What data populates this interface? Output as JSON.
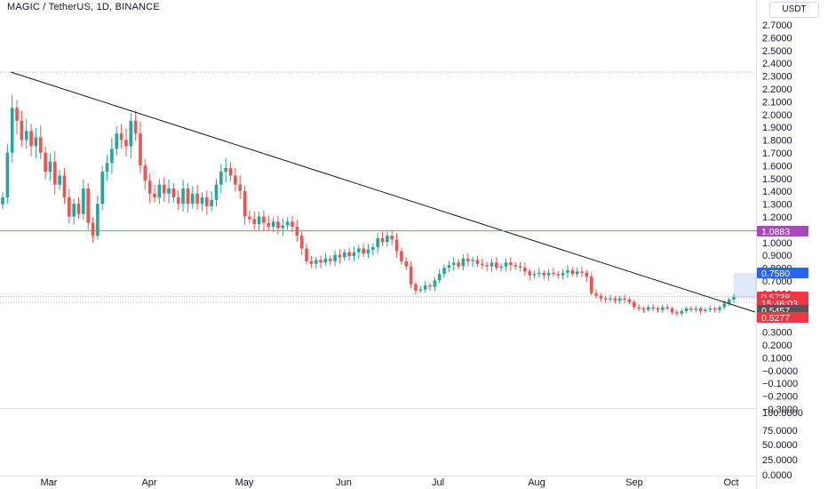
{
  "header": {
    "title": "MAGIC / TetherUS, 1D, BINANCE",
    "currency": "USDT"
  },
  "colors": {
    "up": "#26a69a",
    "down": "#ef5350",
    "trendline": "#131722",
    "horizontal_line": "#ba68c8",
    "tag_purple": "#ab47bc",
    "tag_blue": "#2962ff",
    "tag_red": "#f23645",
    "tag_dark": "#555555"
  },
  "price_tags": [
    {
      "label": "1.0883",
      "value": 1.0883,
      "color": "#ab47bc"
    },
    {
      "label": "0.7580",
      "value": 0.758,
      "color": "#2962ff"
    },
    {
      "label": "0.5738",
      "value": 0.5738,
      "color": "#f23645"
    },
    {
      "label": "15:46:03",
      "value": 0.488,
      "color": "#f23645"
    },
    {
      "label": "0.5457",
      "value": 0.5457,
      "color": "#555555"
    },
    {
      "label": "0.5277",
      "value": 0.5277,
      "color": "#f23645"
    }
  ],
  "chart_data": {
    "type": "candlestick",
    "title": "MAGIC / TetherUS, 1D, BINANCE",
    "y_axis_price": {
      "ticks": [
        "2.7000",
        "2.6000",
        "2.5000",
        "2.4000",
        "2.3000",
        "2.2000",
        "2.1000",
        "2.0000",
        "1.9000",
        "1.8000",
        "1.7000",
        "1.6000",
        "1.5000",
        "1.4000",
        "1.3000",
        "1.2000",
        "1.1000",
        "1.0000",
        "0.9000",
        "0.8000",
        "0.7000",
        "0.6000",
        "0.5000",
        "0.4000",
        "0.3000",
        "0.2000",
        "0.1000",
        "−0.0000",
        "−0.1000",
        "−0.2000",
        "−0.3000"
      ],
      "range": [
        -0.3,
        2.8
      ]
    },
    "y_axis_volume": {
      "ticks": [
        "100.0000",
        "75.0000",
        "50.0000",
        "25.0000",
        "0.0000"
      ],
      "range": [
        0,
        100
      ]
    },
    "x_ticks": [
      "Mar",
      "Apr",
      "May",
      "Jun",
      "Jul",
      "Aug",
      "Sep",
      "Oct"
    ],
    "trendline": {
      "from": {
        "date": "2023-02-16",
        "price": 2.33
      },
      "to": {
        "date": "2023-10-02",
        "price": 0.5
      }
    },
    "horizontal_line": 1.0883,
    "closes": [
      1.35,
      1.7,
      2.05,
      1.95,
      1.8,
      1.87,
      1.75,
      1.82,
      1.7,
      1.55,
      1.63,
      1.45,
      1.52,
      1.35,
      1.2,
      1.3,
      1.22,
      1.42,
      1.15,
      1.05,
      1.3,
      1.55,
      1.62,
      1.73,
      1.85,
      1.8,
      1.75,
      1.95,
      1.85,
      1.6,
      1.48,
      1.38,
      1.35,
      1.45,
      1.38,
      1.42,
      1.35,
      1.3,
      1.42,
      1.3,
      1.38,
      1.3,
      1.35,
      1.28,
      1.33,
      1.45,
      1.55,
      1.58,
      1.52,
      1.45,
      1.4,
      1.2,
      1.18,
      1.14,
      1.2,
      1.15,
      1.12,
      1.16,
      1.11,
      1.13,
      1.16,
      1.12,
      1.05,
      0.95,
      0.85,
      0.83,
      0.86,
      0.84,
      0.87,
      0.85,
      0.9,
      0.88,
      0.92,
      0.89,
      0.92,
      0.95,
      0.91,
      0.94,
      0.96,
      1.03,
      1.0,
      1.05,
      1.02,
      0.93,
      0.85,
      0.81,
      0.67,
      0.62,
      0.63,
      0.66,
      0.65,
      0.7,
      0.75,
      0.8,
      0.82,
      0.84,
      0.81,
      0.87,
      0.85,
      0.86,
      0.83,
      0.82,
      0.81,
      0.84,
      0.8,
      0.81,
      0.84,
      0.82,
      0.81,
      0.8,
      0.77,
      0.74,
      0.75,
      0.76,
      0.74,
      0.76,
      0.75,
      0.74,
      0.76,
      0.78,
      0.75,
      0.77,
      0.76,
      0.73,
      0.6,
      0.58,
      0.56,
      0.55,
      0.56,
      0.54,
      0.56,
      0.55,
      0.53,
      0.49,
      0.48,
      0.47,
      0.49,
      0.48,
      0.47,
      0.49,
      0.48,
      0.45,
      0.44,
      0.46,
      0.48,
      0.47,
      0.48,
      0.46,
      0.47,
      0.48,
      0.47,
      0.49,
      0.52,
      0.55,
      0.57
    ]
  }
}
